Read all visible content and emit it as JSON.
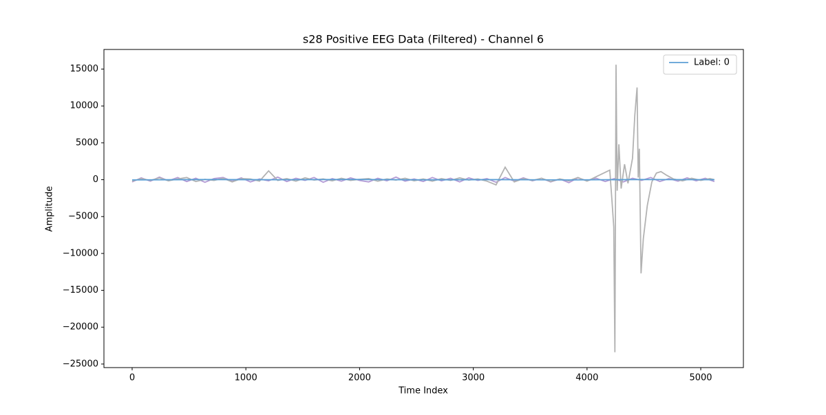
{
  "chart_data": {
    "type": "line",
    "title": "s28 Positive EEG Data (Filtered) - Channel 6",
    "x_label": "Time Index",
    "y_label": "Amplitude",
    "xlim": [
      -248,
      5375
    ],
    "ylim": [
      -25480,
      17660
    ],
    "xticks": [
      0,
      1000,
      2000,
      3000,
      4000,
      5000
    ],
    "yticks": [
      {
        "value": -25000,
        "label": "−25000"
      },
      {
        "value": -20000,
        "label": "−20000"
      },
      {
        "value": -15000,
        "label": "−15000"
      },
      {
        "value": -10000,
        "label": "−10000"
      },
      {
        "value": -5000,
        "label": "−5000"
      },
      0,
      5000,
      10000,
      15000
    ],
    "legend_position": "upper right",
    "series": [
      {
        "color": "#b49bd5",
        "x": [
          0,
          80,
          160,
          240,
          320,
          400,
          480,
          560,
          640,
          720,
          800,
          880,
          960,
          1040,
          1120,
          1200,
          1280,
          1360,
          1440,
          1520,
          1600,
          1680,
          1760,
          1840,
          1920,
          2000,
          2080,
          2160,
          2240,
          2320,
          2400,
          2480,
          2560,
          2640,
          2720,
          2800,
          2880,
          2960,
          3040,
          3120,
          3200,
          3280,
          3360,
          3440,
          3520,
          3600,
          3680,
          3760,
          3840,
          3920,
          4000,
          4080,
          4160,
          4240,
          4320,
          4400,
          4480,
          4560,
          4640,
          4720,
          4800,
          4880,
          4960,
          5040,
          5120
        ],
        "values": [
          -300,
          250,
          -200,
          350,
          -150,
          300,
          -250,
          200,
          -350,
          150,
          300,
          -200,
          250,
          -300,
          100,
          -150,
          350,
          -250,
          200,
          -100,
          300,
          -350,
          150,
          -200,
          250,
          -100,
          -300,
          200,
          -150,
          350,
          -200,
          100,
          -250,
          300,
          -150,
          200,
          -300,
          250,
          -100,
          150,
          -350,
          300,
          -200,
          250,
          -150,
          200,
          -300,
          100,
          -400,
          250,
          -150,
          200,
          -250,
          150,
          -300,
          200,
          -100,
          300,
          -250,
          150,
          -200,
          250,
          -150,
          200,
          -250
        ]
      },
      {
        "color": "#b2b2b2",
        "x": [
          0,
          80,
          160,
          240,
          320,
          400,
          480,
          560,
          640,
          720,
          800,
          880,
          960,
          1040,
          1120,
          1200,
          1280,
          1360,
          1440,
          1520,
          1600,
          1680,
          1760,
          1840,
          1920,
          2000,
          2080,
          2160,
          2240,
          2320,
          2400,
          2480,
          2560,
          2640,
          2720,
          2800,
          2880,
          2960,
          3040,
          3120,
          3200,
          3280,
          3360,
          3440,
          3520,
          3600,
          3680,
          3760,
          3840,
          3920,
          4000,
          4080,
          4160,
          4200,
          4220,
          4235,
          4245,
          4255,
          4265,
          4280,
          4300,
          4330,
          4360,
          4400,
          4420,
          4440,
          4450,
          4460,
          4475,
          4495,
          4530,
          4570,
          4610,
          4650,
          4700,
          4760,
          4840,
          4920,
          5000,
          5080,
          5120
        ],
        "values": [
          -200,
          150,
          -100,
          250,
          -150,
          100,
          300,
          -250,
          50,
          -100,
          200,
          -300,
          150,
          100,
          -200,
          1200,
          -100,
          150,
          -200,
          250,
          -50,
          100,
          -150,
          200,
          -100,
          50,
          150,
          -200,
          100,
          -50,
          200,
          -150,
          100,
          -200,
          150,
          -100,
          250,
          -50,
          100,
          -200,
          -700,
          1700,
          -300,
          150,
          -100,
          200,
          -250,
          100,
          -150,
          300,
          -200,
          400,
          1000,
          1300,
          -3000,
          -6400,
          -23400,
          15600,
          -1500,
          4800,
          -1200,
          2100,
          -500,
          2900,
          8700,
          12500,
          300,
          4200,
          -12700,
          -8000,
          -3500,
          -300,
          900,
          1100,
          600,
          100,
          -150,
          200,
          -100,
          150,
          0
        ]
      },
      {
        "name": "Label: 0",
        "color": "#5b9fd5",
        "x": [
          0,
          640,
          1280,
          1920,
          2560,
          3200,
          3840,
          4480,
          5120
        ],
        "values": [
          -30,
          20,
          -10,
          30,
          -20,
          10,
          -30,
          20,
          0
        ]
      }
    ]
  }
}
